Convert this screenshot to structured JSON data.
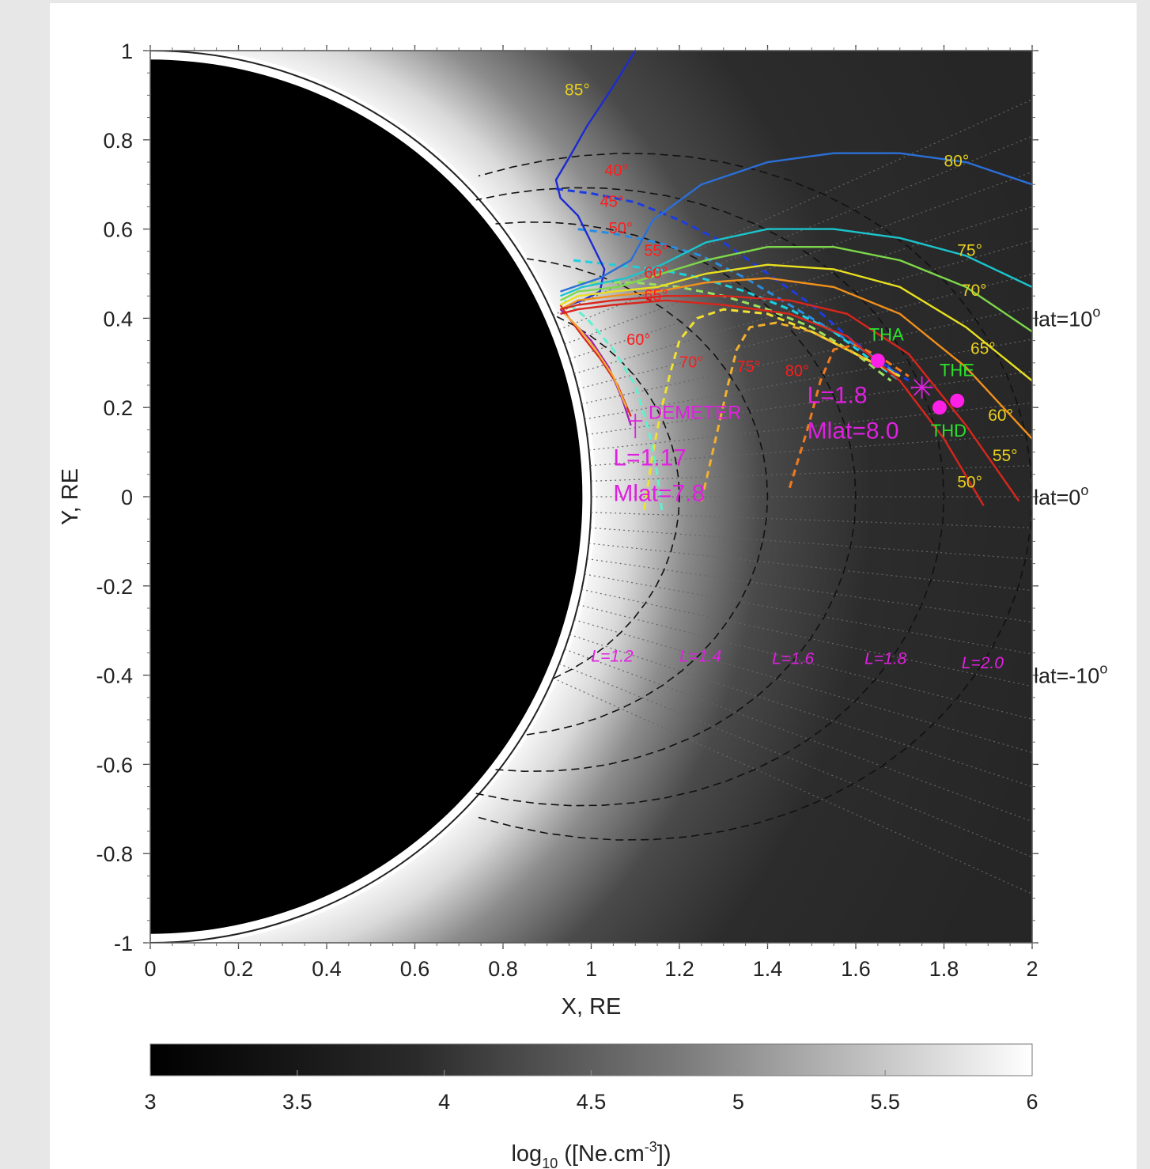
{
  "chart_data": {
    "type": "heatmap",
    "xlabel": "X, RE",
    "ylabel": "Y, RE",
    "xlim": [
      0,
      2
    ],
    "ylim": [
      -1,
      1
    ],
    "x_ticks": [
      {
        "v": 0,
        "t": "0"
      },
      {
        "v": 0.2,
        "t": "0.2"
      },
      {
        "v": 0.4,
        "t": "0.4"
      },
      {
        "v": 0.6,
        "t": "0.6"
      },
      {
        "v": 0.8,
        "t": "0.8"
      },
      {
        "v": 1,
        "t": "1"
      },
      {
        "v": 1.2,
        "t": "1.2"
      },
      {
        "v": 1.4,
        "t": "1.4"
      },
      {
        "v": 1.6,
        "t": "1.6"
      },
      {
        "v": 1.8,
        "t": "1.8"
      },
      {
        "v": 2,
        "t": "2"
      }
    ],
    "y_ticks": [
      {
        "v": 1,
        "t": "1"
      },
      {
        "v": 0.8,
        "t": "0.8"
      },
      {
        "v": 0.6,
        "t": "0.6"
      },
      {
        "v": 0.4,
        "t": "0.4"
      },
      {
        "v": 0.2,
        "t": "0.2"
      },
      {
        "v": 0,
        "t": "0"
      },
      {
        "v": -0.2,
        "t": "-0.2"
      },
      {
        "v": -0.4,
        "t": "-0.4"
      },
      {
        "v": -0.6,
        "t": "-0.6"
      },
      {
        "v": -0.8,
        "t": "-0.8"
      },
      {
        "v": -1,
        "t": "-1"
      }
    ],
    "colorbar": {
      "range": [
        3,
        6
      ],
      "ticks": [
        {
          "v": 3,
          "t": "3"
        },
        {
          "v": 3.5,
          "t": "3.5"
        },
        {
          "v": 4,
          "t": "4"
        },
        {
          "v": 4.5,
          "t": "4.5"
        },
        {
          "v": 5,
          "t": "5"
        },
        {
          "v": 5.5,
          "t": "5.5"
        },
        {
          "v": 6,
          "t": "6"
        }
      ],
      "label_main": "log",
      "label_sub": "10",
      "label_rest": " ([Ne.cm",
      "label_sup": "-3",
      "label_end": "])"
    },
    "earth_radius": 1,
    "l_shells": [
      {
        "L": 1.2,
        "label": "L=1.2",
        "lx": 1.0,
        "ly": -0.37
      },
      {
        "L": 1.4,
        "label": "L=1.4",
        "lx": 1.2,
        "ly": -0.37
      },
      {
        "L": 1.6,
        "label": "L=1.6",
        "lx": 1.41,
        "ly": -0.375
      },
      {
        "L": 1.8,
        "label": "L=1.8",
        "lx": 1.62,
        "ly": -0.375
      },
      {
        "L": 2.0,
        "label": "L=2.0",
        "lx": 1.84,
        "ly": -0.385
      }
    ],
    "latitude_labels": [
      {
        "text": "lat=10",
        "sup": "o",
        "y": 0.4
      },
      {
        "text": "lat=0",
        "sup": "o",
        "y": 0.0
      },
      {
        "text": "lat=-10",
        "sup": "o",
        "y": -0.4
      }
    ],
    "ray_paths": [
      {
        "label": "85°",
        "color": "#1c2bd0",
        "pts": [
          [
            1.1,
            1
          ],
          [
            1.05,
            0.92
          ],
          [
            0.99,
            0.83
          ],
          [
            0.95,
            0.76
          ],
          [
            0.92,
            0.71
          ],
          [
            0.93,
            0.67
          ],
          [
            0.97,
            0.63
          ],
          [
            1.0,
            0.57
          ],
          [
            1.03,
            0.51
          ],
          [
            1.02,
            0.46
          ],
          [
            0.98,
            0.44
          ],
          [
            0.95,
            0.43
          ]
        ],
        "lx": 0.94,
        "ly": 0.9
      },
      {
        "label": "80°",
        "color": "#2a70d8",
        "pts": [
          [
            2.0,
            0.7
          ],
          [
            1.85,
            0.75
          ],
          [
            1.7,
            0.77
          ],
          [
            1.55,
            0.77
          ],
          [
            1.4,
            0.75
          ],
          [
            1.25,
            0.7
          ],
          [
            1.14,
            0.62
          ],
          [
            1.09,
            0.53
          ],
          [
            1.02,
            0.49
          ],
          [
            0.96,
            0.47
          ],
          [
            0.93,
            0.46
          ]
        ],
        "lx": 1.8,
        "ly": 0.74
      },
      {
        "label": "75°",
        "color": "#1cc4cc",
        "pts": [
          [
            2.0,
            0.47
          ],
          [
            1.85,
            0.54
          ],
          [
            1.7,
            0.58
          ],
          [
            1.55,
            0.6
          ],
          [
            1.4,
            0.6
          ],
          [
            1.26,
            0.57
          ],
          [
            1.16,
            0.52
          ],
          [
            1.08,
            0.49
          ],
          [
            0.98,
            0.47
          ],
          [
            0.93,
            0.45
          ]
        ],
        "lx": 1.83,
        "ly": 0.54
      },
      {
        "label": "70°",
        "color": "#7ed84a",
        "pts": [
          [
            2.0,
            0.37
          ],
          [
            1.85,
            0.47
          ],
          [
            1.7,
            0.53
          ],
          [
            1.55,
            0.56
          ],
          [
            1.4,
            0.56
          ],
          [
            1.26,
            0.53
          ],
          [
            1.16,
            0.5
          ],
          [
            1.06,
            0.47
          ],
          [
            0.97,
            0.46
          ],
          [
            0.93,
            0.44
          ]
        ],
        "lx": 1.84,
        "ly": 0.45
      },
      {
        "label": "65°",
        "color": "#e8e020",
        "pts": [
          [
            2.0,
            0.26
          ],
          [
            1.85,
            0.38
          ],
          [
            1.7,
            0.47
          ],
          [
            1.55,
            0.51
          ],
          [
            1.4,
            0.52
          ],
          [
            1.26,
            0.5
          ],
          [
            1.15,
            0.47
          ],
          [
            1.05,
            0.46
          ],
          [
            0.97,
            0.45
          ],
          [
            0.93,
            0.43
          ]
        ],
        "lx": 1.86,
        "ly": 0.32
      },
      {
        "label": "60°",
        "color": "#f0901c",
        "pts": [
          [
            2.0,
            0.13
          ],
          [
            1.85,
            0.29
          ],
          [
            1.7,
            0.41
          ],
          [
            1.55,
            0.47
          ],
          [
            1.4,
            0.49
          ],
          [
            1.26,
            0.48
          ],
          [
            1.15,
            0.46
          ],
          [
            1.05,
            0.45
          ],
          [
            0.97,
            0.44
          ],
          [
            0.93,
            0.42
          ]
        ],
        "lx": 1.9,
        "ly": 0.17
      },
      {
        "label": "55°",
        "color": "#d8261c",
        "pts": [
          [
            1.97,
            -0.01
          ],
          [
            1.85,
            0.16
          ],
          [
            1.72,
            0.32
          ],
          [
            1.58,
            0.41
          ],
          [
            1.45,
            0.44
          ],
          [
            1.3,
            0.45
          ],
          [
            1.17,
            0.45
          ],
          [
            1.05,
            0.44
          ],
          [
            0.97,
            0.43
          ],
          [
            0.93,
            0.42
          ]
        ],
        "lx": 1.91,
        "ly": 0.08
      },
      {
        "label": "50°",
        "color": "#d8261c",
        "pts": [
          [
            1.89,
            -0.02
          ],
          [
            1.8,
            0.13
          ],
          [
            1.7,
            0.26
          ],
          [
            1.58,
            0.36
          ],
          [
            1.45,
            0.41
          ],
          [
            1.3,
            0.43
          ],
          [
            1.17,
            0.44
          ],
          [
            1.05,
            0.43
          ],
          [
            0.97,
            0.42
          ],
          [
            0.93,
            0.41
          ]
        ],
        "lx": 1.83,
        "ly": 0.02
      }
    ],
    "dashed_paths": [
      {
        "color": "#1c3ce0",
        "pts": [
          [
            0.92,
            0.69
          ],
          [
            1.0,
            0.68
          ],
          [
            1.1,
            0.66
          ],
          [
            1.2,
            0.62
          ],
          [
            1.3,
            0.57
          ],
          [
            1.4,
            0.5
          ],
          [
            1.5,
            0.43
          ],
          [
            1.58,
            0.36
          ],
          [
            1.66,
            0.3
          ],
          [
            1.72,
            0.26
          ]
        ]
      },
      {
        "color": "#2a8ce0",
        "pts": [
          [
            0.97,
            0.6
          ],
          [
            1.05,
            0.59
          ],
          [
            1.15,
            0.57
          ],
          [
            1.25,
            0.54
          ],
          [
            1.35,
            0.49
          ],
          [
            1.45,
            0.43
          ],
          [
            1.55,
            0.37
          ],
          [
            1.63,
            0.32
          ],
          [
            1.7,
            0.27
          ]
        ]
      },
      {
        "color": "#1cd0e0",
        "pts": [
          [
            0.96,
            0.53
          ],
          [
            1.05,
            0.52
          ],
          [
            1.15,
            0.51
          ],
          [
            1.25,
            0.49
          ],
          [
            1.35,
            0.46
          ],
          [
            1.45,
            0.42
          ],
          [
            1.55,
            0.37
          ],
          [
            1.63,
            0.31
          ],
          [
            1.7,
            0.26
          ]
        ]
      },
      {
        "color": "#9ce060",
        "pts": [
          [
            0.97,
            0.48
          ],
          [
            1.1,
            0.48
          ],
          [
            1.2,
            0.47
          ],
          [
            1.3,
            0.45
          ],
          [
            1.4,
            0.42
          ],
          [
            1.5,
            0.38
          ],
          [
            1.6,
            0.32
          ],
          [
            1.68,
            0.26
          ]
        ]
      },
      {
        "color": "#f0e030",
        "pts": [
          [
            1.12,
            -0.03
          ],
          [
            1.14,
            0.1
          ],
          [
            1.16,
            0.2
          ],
          [
            1.18,
            0.28
          ],
          [
            1.2,
            0.35
          ],
          [
            1.24,
            0.4
          ],
          [
            1.3,
            0.42
          ],
          [
            1.4,
            0.41
          ],
          [
            1.5,
            0.37
          ],
          [
            1.6,
            0.32
          ],
          [
            1.7,
            0.27
          ]
        ]
      },
      {
        "color": "#f0b030",
        "pts": [
          [
            1.25,
            -0.01
          ],
          [
            1.28,
            0.12
          ],
          [
            1.31,
            0.25
          ],
          [
            1.33,
            0.33
          ],
          [
            1.36,
            0.38
          ],
          [
            1.42,
            0.39
          ],
          [
            1.5,
            0.37
          ],
          [
            1.6,
            0.32
          ],
          [
            1.7,
            0.27
          ]
        ]
      },
      {
        "color": "#f07a20",
        "pts": [
          [
            1.45,
            0.02
          ],
          [
            1.49,
            0.15
          ],
          [
            1.52,
            0.26
          ],
          [
            1.55,
            0.33
          ],
          [
            1.6,
            0.34
          ],
          [
            1.66,
            0.31
          ],
          [
            1.72,
            0.27
          ]
        ]
      },
      {
        "color": "#60f0d0",
        "pts": [
          [
            1.16,
            -0.03
          ],
          [
            1.15,
            0.05
          ],
          [
            1.13,
            0.15
          ],
          [
            1.1,
            0.25
          ],
          [
            1.05,
            0.33
          ],
          [
            0.99,
            0.4
          ],
          [
            0.94,
            0.44
          ]
        ]
      }
    ],
    "source_lines": [
      {
        "color": "#9b1cb0",
        "pts": [
          [
            1.09,
            0.16
          ],
          [
            1.07,
            0.22
          ],
          [
            1.04,
            0.29
          ],
          [
            1.0,
            0.35
          ],
          [
            0.96,
            0.39
          ],
          [
            0.93,
            0.42
          ]
        ]
      },
      {
        "color": "#d8261c",
        "pts": [
          [
            1.09,
            0.18
          ],
          [
            1.06,
            0.25
          ],
          [
            1.02,
            0.31
          ],
          [
            0.98,
            0.36
          ],
          [
            0.95,
            0.4
          ],
          [
            0.93,
            0.43
          ]
        ]
      },
      {
        "color": "#f0b030",
        "pts": [
          [
            1.08,
            0.2
          ],
          [
            1.05,
            0.27
          ],
          [
            1.01,
            0.33
          ],
          [
            0.97,
            0.38
          ],
          [
            0.94,
            0.41
          ]
        ]
      }
    ],
    "red_angle_labels": [
      {
        "t": "40°",
        "x": 1.03,
        "y": 0.72
      },
      {
        "t": "45°",
        "x": 1.02,
        "y": 0.65
      },
      {
        "t": "50°",
        "x": 1.04,
        "y": 0.59
      },
      {
        "t": "55°",
        "x": 1.12,
        "y": 0.54
      },
      {
        "t": "60°",
        "x": 1.12,
        "y": 0.49
      },
      {
        "t": "65°",
        "x": 1.12,
        "y": 0.44
      },
      {
        "t": "60°",
        "x": 1.08,
        "y": 0.34
      },
      {
        "t": "70°",
        "x": 1.2,
        "y": 0.29
      },
      {
        "t": "75°",
        "x": 1.33,
        "y": 0.28
      },
      {
        "t": "80°",
        "x": 1.44,
        "y": 0.27
      }
    ],
    "spacecraft": [
      {
        "name": "THA",
        "x": 1.65,
        "y": 0.305,
        "lx": 1.63,
        "ly": 0.35
      },
      {
        "name": "THE",
        "x": 1.83,
        "y": 0.215,
        "lx": 1.79,
        "ly": 0.27
      },
      {
        "name": "THD",
        "x": 1.79,
        "y": 0.2,
        "lx": 1.77,
        "ly": 0.135
      }
    ],
    "star": {
      "x": 1.75,
      "y": 0.245
    },
    "annotations": [
      {
        "t": "L=1.8",
        "x": 1.49,
        "y": 0.21,
        "size": 30
      },
      {
        "t": "Mlat=8.0",
        "x": 1.49,
        "y": 0.13,
        "size": 30
      },
      {
        "t": "L=1.17",
        "x": 1.05,
        "y": 0.07,
        "size": 30
      },
      {
        "t": "Mlat=7.8",
        "x": 1.05,
        "y": -0.01,
        "size": 30
      },
      {
        "t": "DEMETER",
        "x": 1.13,
        "y": 0.175,
        "size": 24
      }
    ],
    "demeter_point": {
      "x": 1.1,
      "y": 0.17
    }
  },
  "colors": {
    "annotation": "#e020e0",
    "spacecraft_marker": "#ff20e8",
    "spacecraft_label": "#2ce02c",
    "angle_label": "#e8d020",
    "red_label": "#ff1c1c"
  }
}
